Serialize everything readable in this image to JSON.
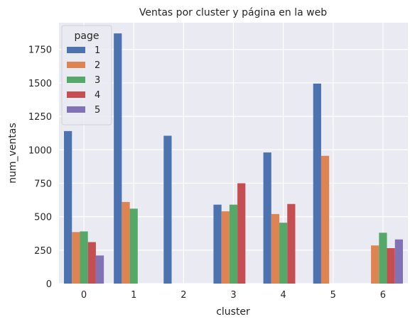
{
  "chart_data": {
    "type": "bar",
    "title": "Ventas por cluster y página en la web",
    "xlabel": "cluster",
    "ylabel": "num_ventas",
    "categories": [
      "0",
      "1",
      "2",
      "3",
      "4",
      "5",
      "6"
    ],
    "ylim": [
      0,
      1950
    ],
    "yticks": [
      0,
      250,
      500,
      750,
      1000,
      1250,
      1500,
      1750
    ],
    "grid": true,
    "legend": {
      "title": "page",
      "placement": "top-left"
    },
    "series": [
      {
        "name": "1",
        "color": "#4c72b0",
        "values": [
          1140,
          1870,
          1105,
          590,
          980,
          1495,
          0
        ]
      },
      {
        "name": "2",
        "color": "#dd8452",
        "values": [
          385,
          610,
          0,
          540,
          520,
          955,
          285
        ]
      },
      {
        "name": "3",
        "color": "#55a868",
        "values": [
          390,
          560,
          0,
          590,
          455,
          0,
          380
        ]
      },
      {
        "name": "4",
        "color": "#c44e52",
        "values": [
          310,
          0,
          0,
          750,
          595,
          0,
          265
        ]
      },
      {
        "name": "5",
        "color": "#8172b3",
        "values": [
          210,
          0,
          0,
          0,
          0,
          0,
          330
        ]
      }
    ]
  }
}
